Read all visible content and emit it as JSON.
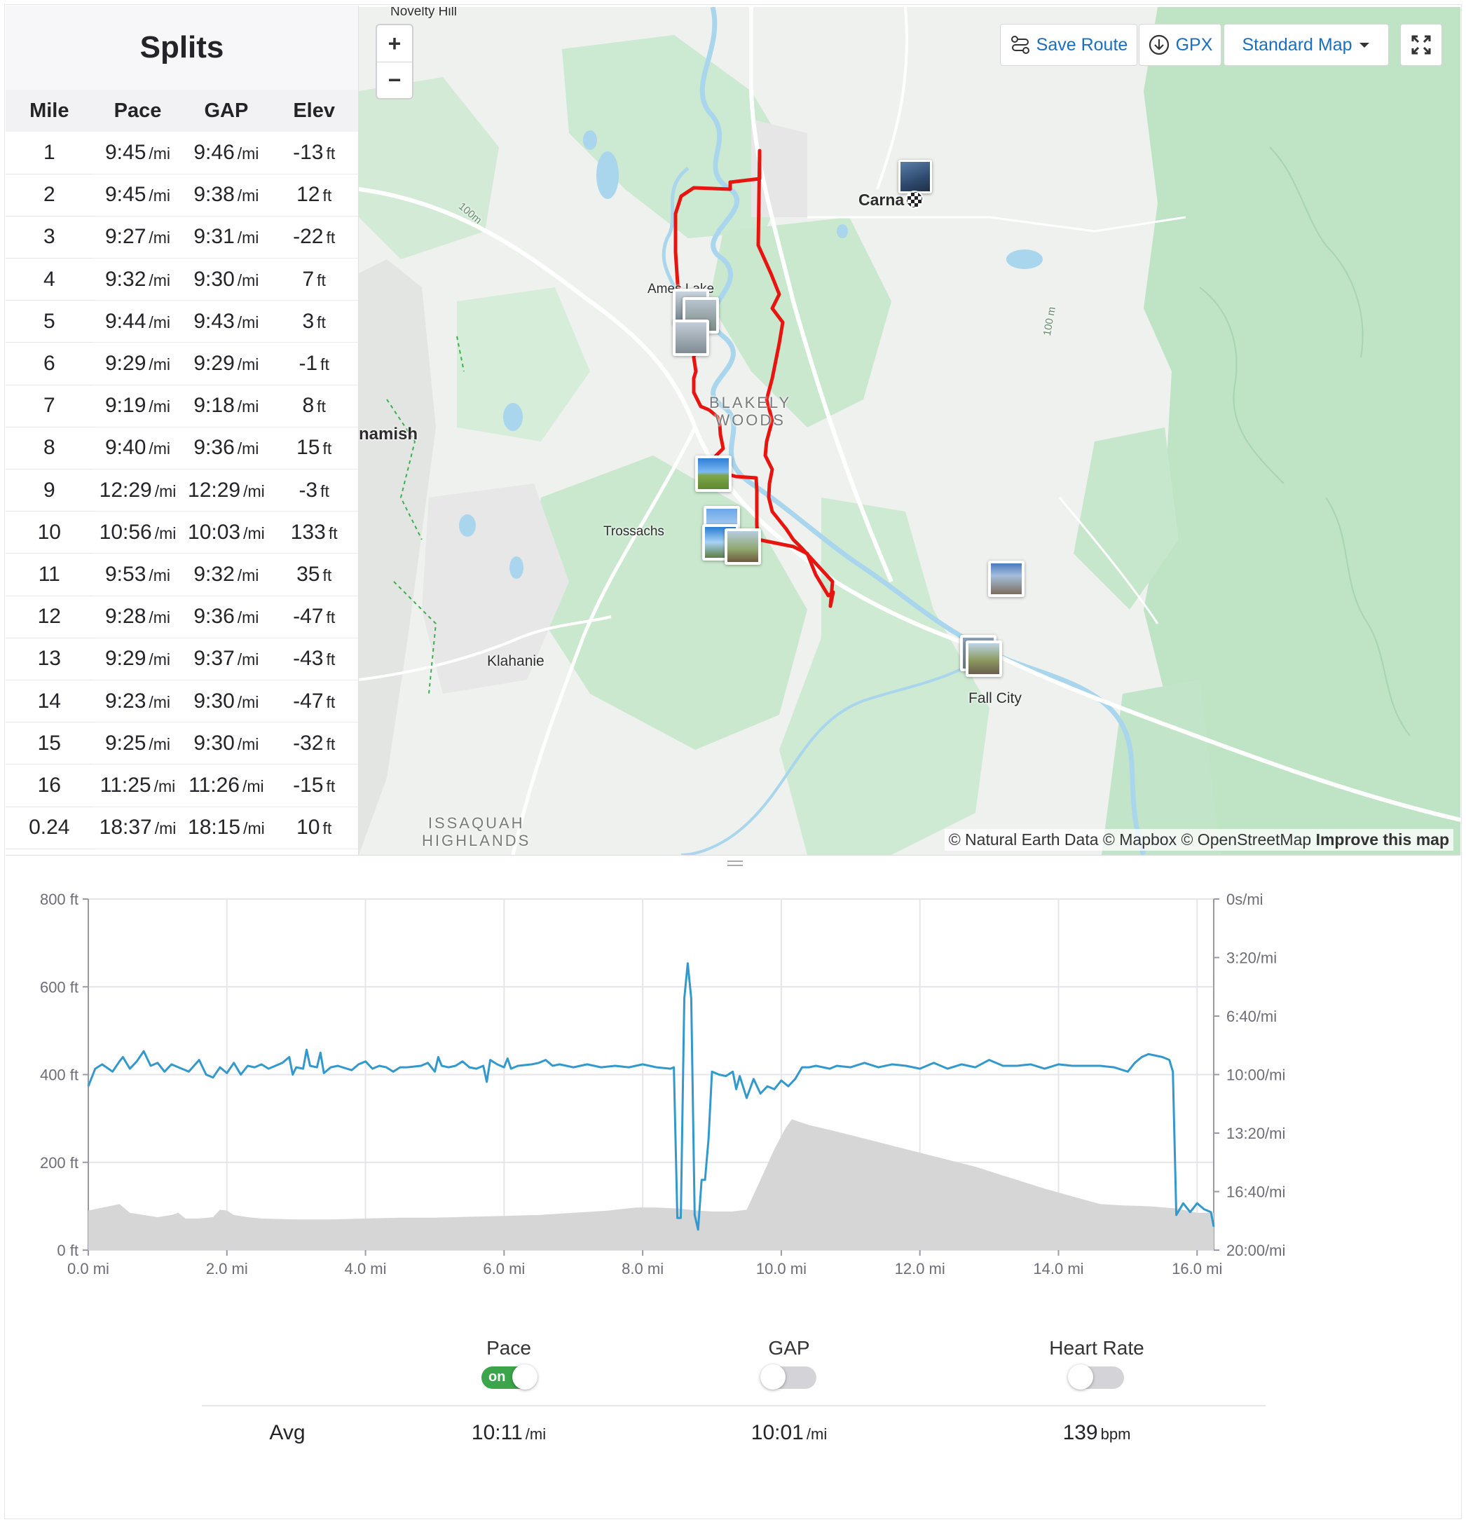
{
  "splits": {
    "title": "Splits",
    "columns": [
      "Mile",
      "Pace",
      "GAP",
      "Elev"
    ],
    "rows": [
      {
        "mile": "1",
        "pace": "9:45",
        "pace_unit": "/mi",
        "gap": "9:46",
        "gap_unit": "/mi",
        "elev": "-13",
        "elev_unit": "ft"
      },
      {
        "mile": "2",
        "pace": "9:45",
        "pace_unit": "/mi",
        "gap": "9:38",
        "gap_unit": "/mi",
        "elev": "12",
        "elev_unit": "ft"
      },
      {
        "mile": "3",
        "pace": "9:27",
        "pace_unit": "/mi",
        "gap": "9:31",
        "gap_unit": "/mi",
        "elev": "-22",
        "elev_unit": "ft"
      },
      {
        "mile": "4",
        "pace": "9:32",
        "pace_unit": "/mi",
        "gap": "9:30",
        "gap_unit": "/mi",
        "elev": "7",
        "elev_unit": "ft"
      },
      {
        "mile": "5",
        "pace": "9:44",
        "pace_unit": "/mi",
        "gap": "9:43",
        "gap_unit": "/mi",
        "elev": "3",
        "elev_unit": "ft"
      },
      {
        "mile": "6",
        "pace": "9:29",
        "pace_unit": "/mi",
        "gap": "9:29",
        "gap_unit": "/mi",
        "elev": "-1",
        "elev_unit": "ft"
      },
      {
        "mile": "7",
        "pace": "9:19",
        "pace_unit": "/mi",
        "gap": "9:18",
        "gap_unit": "/mi",
        "elev": "8",
        "elev_unit": "ft"
      },
      {
        "mile": "8",
        "pace": "9:40",
        "pace_unit": "/mi",
        "gap": "9:36",
        "gap_unit": "/mi",
        "elev": "15",
        "elev_unit": "ft"
      },
      {
        "mile": "9",
        "pace": "12:29",
        "pace_unit": "/mi",
        "gap": "12:29",
        "gap_unit": "/mi",
        "elev": "-3",
        "elev_unit": "ft"
      },
      {
        "mile": "10",
        "pace": "10:56",
        "pace_unit": "/mi",
        "gap": "10:03",
        "gap_unit": "/mi",
        "elev": "133",
        "elev_unit": "ft"
      },
      {
        "mile": "11",
        "pace": "9:53",
        "pace_unit": "/mi",
        "gap": "9:32",
        "gap_unit": "/mi",
        "elev": "35",
        "elev_unit": "ft"
      },
      {
        "mile": "12",
        "pace": "9:28",
        "pace_unit": "/mi",
        "gap": "9:36",
        "gap_unit": "/mi",
        "elev": "-47",
        "elev_unit": "ft"
      },
      {
        "mile": "13",
        "pace": "9:29",
        "pace_unit": "/mi",
        "gap": "9:37",
        "gap_unit": "/mi",
        "elev": "-43",
        "elev_unit": "ft"
      },
      {
        "mile": "14",
        "pace": "9:23",
        "pace_unit": "/mi",
        "gap": "9:30",
        "gap_unit": "/mi",
        "elev": "-47",
        "elev_unit": "ft"
      },
      {
        "mile": "15",
        "pace": "9:25",
        "pace_unit": "/mi",
        "gap": "9:30",
        "gap_unit": "/mi",
        "elev": "-32",
        "elev_unit": "ft"
      },
      {
        "mile": "16",
        "pace": "11:25",
        "pace_unit": "/mi",
        "gap": "11:26",
        "gap_unit": "/mi",
        "elev": "-15",
        "elev_unit": "ft"
      },
      {
        "mile": "0.24",
        "pace": "18:37",
        "pace_unit": "/mi",
        "gap": "18:15",
        "gap_unit": "/mi",
        "elev": "10",
        "elev_unit": "ft"
      }
    ]
  },
  "map": {
    "zoom_in": "+",
    "zoom_out": "−",
    "save_route_label": "Save Route",
    "gpx_label": "GPX",
    "map_style_label": "Standard Map",
    "fullscreen_icon": "fullscreen-icon",
    "attribution": "© Natural Earth Data © Mapbox © OpenStreetMap",
    "improve_link": "Improve this map",
    "route_color": "#e8140f",
    "labels": {
      "novelty_hill": "Novelty Hill",
      "carnation": "Carna",
      "ames_lake": "Ames Lake",
      "blakely_woods_1": "BLAKELY",
      "blakely_woods_2": "WOODS",
      "sammamish": "namish",
      "trossachs": "Trossachs",
      "klahanie": "Klahanie",
      "fall_city": "Fall City",
      "issaquah_1": "ISSAQUAH",
      "issaquah_2": "HIGHLANDS",
      "contour_100m_a": "100m",
      "contour_100m_b": "100 m"
    }
  },
  "chart": {
    "left_axis_ticks": [
      "800 ft",
      "600 ft",
      "400 ft",
      "200 ft",
      "0 ft"
    ],
    "right_axis_ticks": [
      "0s/mi",
      "3:20/mi",
      "6:40/mi",
      "10:00/mi",
      "13:20/mi",
      "16:40/mi",
      "20:00/mi"
    ],
    "x_ticks": [
      "0.0 mi",
      "2.0 mi",
      "4.0 mi",
      "6.0 mi",
      "8.0 mi",
      "10.0 mi",
      "12.0 mi",
      "14.0 mi",
      "16.0 mi"
    ],
    "colors": {
      "pace_line": "#3399cc",
      "elevation_fill": "#d6d6d6",
      "grid": "#e6e6ea"
    }
  },
  "chart_data": {
    "type": "line",
    "x_unit": "mi",
    "xlim": [
      0,
      16.24
    ],
    "ylim_left": [
      0,
      800
    ],
    "y_left_unit": "ft",
    "ylim_right_seconds_per_mi": [
      0,
      1200
    ],
    "series": [
      {
        "name": "Pace",
        "axis": "right",
        "unit": "s/mi",
        "points": [
          [
            0,
            640
          ],
          [
            0.1,
            580
          ],
          [
            0.2,
            565
          ],
          [
            0.35,
            590
          ],
          [
            0.45,
            555
          ],
          [
            0.5,
            540
          ],
          [
            0.6,
            580
          ],
          [
            0.7,
            555
          ],
          [
            0.8,
            520
          ],
          [
            0.9,
            570
          ],
          [
            1.0,
            560
          ],
          [
            1.1,
            590
          ],
          [
            1.2,
            565
          ],
          [
            1.3,
            575
          ],
          [
            1.45,
            590
          ],
          [
            1.6,
            550
          ],
          [
            1.7,
            600
          ],
          [
            1.8,
            610
          ],
          [
            1.9,
            575
          ],
          [
            2.0,
            595
          ],
          [
            2.1,
            560
          ],
          [
            2.2,
            600
          ],
          [
            2.3,
            570
          ],
          [
            2.4,
            575
          ],
          [
            2.5,
            565
          ],
          [
            2.6,
            580
          ],
          [
            2.7,
            570
          ],
          [
            2.8,
            560
          ],
          [
            2.9,
            540
          ],
          [
            2.95,
            600
          ],
          [
            3.0,
            575
          ],
          [
            3.1,
            580
          ],
          [
            3.15,
            515
          ],
          [
            3.2,
            570
          ],
          [
            3.3,
            575
          ],
          [
            3.35,
            525
          ],
          [
            3.4,
            595
          ],
          [
            3.5,
            575
          ],
          [
            3.6,
            570
          ],
          [
            3.8,
            585
          ],
          [
            3.9,
            565
          ],
          [
            4.0,
            555
          ],
          [
            4.1,
            580
          ],
          [
            4.2,
            570
          ],
          [
            4.3,
            575
          ],
          [
            4.4,
            590
          ],
          [
            4.5,
            575
          ],
          [
            4.6,
            575
          ],
          [
            4.8,
            570
          ],
          [
            4.9,
            560
          ],
          [
            5.0,
            590
          ],
          [
            5.05,
            540
          ],
          [
            5.1,
            570
          ],
          [
            5.2,
            575
          ],
          [
            5.3,
            570
          ],
          [
            5.4,
            555
          ],
          [
            5.5,
            575
          ],
          [
            5.6,
            580
          ],
          [
            5.7,
            570
          ],
          [
            5.75,
            625
          ],
          [
            5.8,
            550
          ],
          [
            5.9,
            565
          ],
          [
            6.0,
            575
          ],
          [
            6.05,
            545
          ],
          [
            6.1,
            580
          ],
          [
            6.2,
            570
          ],
          [
            6.4,
            565
          ],
          [
            6.5,
            560
          ],
          [
            6.6,
            550
          ],
          [
            6.7,
            570
          ],
          [
            6.8,
            565
          ],
          [
            7.0,
            575
          ],
          [
            7.2,
            565
          ],
          [
            7.4,
            575
          ],
          [
            7.6,
            570
          ],
          [
            7.8,
            575
          ],
          [
            8.0,
            565
          ],
          [
            8.1,
            570
          ],
          [
            8.2,
            575
          ],
          [
            8.4,
            580
          ],
          [
            8.45,
            575
          ],
          [
            8.5,
            1090
          ],
          [
            8.55,
            1090
          ],
          [
            8.6,
            340
          ],
          [
            8.65,
            220
          ],
          [
            8.7,
            340
          ],
          [
            8.75,
            1080
          ],
          [
            8.8,
            1130
          ],
          [
            8.85,
            960
          ],
          [
            8.9,
            960
          ],
          [
            8.95,
            820
          ],
          [
            9.0,
            590
          ],
          [
            9.1,
            600
          ],
          [
            9.2,
            605
          ],
          [
            9.3,
            590
          ],
          [
            9.35,
            650
          ],
          [
            9.4,
            605
          ],
          [
            9.5,
            680
          ],
          [
            9.6,
            615
          ],
          [
            9.7,
            665
          ],
          [
            9.8,
            640
          ],
          [
            9.9,
            650
          ],
          [
            10.0,
            620
          ],
          [
            10.1,
            640
          ],
          [
            10.2,
            615
          ],
          [
            10.3,
            575
          ],
          [
            10.4,
            575
          ],
          [
            10.5,
            570
          ],
          [
            10.7,
            580
          ],
          [
            10.8,
            570
          ],
          [
            11.0,
            575
          ],
          [
            11.2,
            560
          ],
          [
            11.4,
            575
          ],
          [
            11.6,
            565
          ],
          [
            11.8,
            570
          ],
          [
            12.0,
            580
          ],
          [
            12.2,
            560
          ],
          [
            12.4,
            580
          ],
          [
            12.6,
            565
          ],
          [
            12.8,
            575
          ],
          [
            13.0,
            550
          ],
          [
            13.2,
            570
          ],
          [
            13.4,
            570
          ],
          [
            13.6,
            565
          ],
          [
            13.8,
            580
          ],
          [
            14.0,
            565
          ],
          [
            14.2,
            570
          ],
          [
            14.4,
            570
          ],
          [
            14.6,
            570
          ],
          [
            14.8,
            575
          ],
          [
            15.0,
            590
          ],
          [
            15.1,
            560
          ],
          [
            15.2,
            540
          ],
          [
            15.3,
            530
          ],
          [
            15.4,
            535
          ],
          [
            15.5,
            540
          ],
          [
            15.6,
            550
          ],
          [
            15.65,
            590
          ],
          [
            15.7,
            1080
          ],
          [
            15.8,
            1040
          ],
          [
            15.9,
            1070
          ],
          [
            16.0,
            1040
          ],
          [
            16.1,
            1060
          ],
          [
            16.2,
            1070
          ],
          [
            16.24,
            1120
          ]
        ]
      },
      {
        "name": "Elevation",
        "axis": "left",
        "unit": "ft",
        "points": [
          [
            0,
            90
          ],
          [
            0.3,
            100
          ],
          [
            0.45,
            105
          ],
          [
            0.6,
            85
          ],
          [
            0.8,
            80
          ],
          [
            1.0,
            75
          ],
          [
            1.2,
            80
          ],
          [
            1.3,
            85
          ],
          [
            1.4,
            72
          ],
          [
            1.6,
            72
          ],
          [
            1.8,
            75
          ],
          [
            1.9,
            92
          ],
          [
            2.0,
            90
          ],
          [
            2.1,
            80
          ],
          [
            2.3,
            75
          ],
          [
            2.5,
            72
          ],
          [
            3.0,
            70
          ],
          [
            3.5,
            70
          ],
          [
            4.0,
            72
          ],
          [
            4.5,
            74
          ],
          [
            5.0,
            74
          ],
          [
            5.5,
            76
          ],
          [
            6.0,
            78
          ],
          [
            6.5,
            80
          ],
          [
            7.0,
            85
          ],
          [
            7.5,
            90
          ],
          [
            7.9,
            97
          ],
          [
            8.2,
            97
          ],
          [
            8.5,
            95
          ],
          [
            8.8,
            90
          ],
          [
            9.0,
            88
          ],
          [
            9.3,
            88
          ],
          [
            9.5,
            92
          ],
          [
            9.7,
            160
          ],
          [
            9.9,
            230
          ],
          [
            10.05,
            275
          ],
          [
            10.15,
            298
          ],
          [
            10.4,
            285
          ],
          [
            10.8,
            270
          ],
          [
            11.3,
            250
          ],
          [
            11.8,
            230
          ],
          [
            12.3,
            210
          ],
          [
            12.8,
            190
          ],
          [
            13.3,
            165
          ],
          [
            13.8,
            140
          ],
          [
            14.3,
            118
          ],
          [
            14.6,
            105
          ],
          [
            14.9,
            102
          ],
          [
            15.3,
            100
          ],
          [
            15.7,
            95
          ],
          [
            16.0,
            85
          ],
          [
            16.24,
            85
          ]
        ]
      }
    ]
  },
  "metrics": {
    "pace": {
      "label": "Pace",
      "toggle_text": "on",
      "toggle_state": true,
      "avg_value": "10:11",
      "avg_unit": "/mi"
    },
    "gap": {
      "label": "GAP",
      "toggle_state": false,
      "avg_value": "10:01",
      "avg_unit": "/mi"
    },
    "heart": {
      "label": "Heart Rate",
      "toggle_state": false,
      "avg_value": "139",
      "avg_unit": "bpm"
    },
    "avg_label": "Avg"
  }
}
